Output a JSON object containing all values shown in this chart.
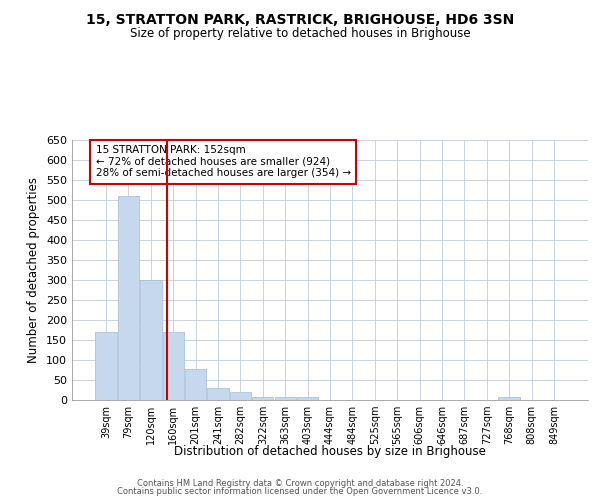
{
  "title1": "15, STRATTON PARK, RASTRICK, BRIGHOUSE, HD6 3SN",
  "title2": "Size of property relative to detached houses in Brighouse",
  "xlabel": "Distribution of detached houses by size in Brighouse",
  "ylabel": "Number of detached properties",
  "categories": [
    "39sqm",
    "79sqm",
    "120sqm",
    "160sqm",
    "201sqm",
    "241sqm",
    "282sqm",
    "322sqm",
    "363sqm",
    "403sqm",
    "444sqm",
    "484sqm",
    "525sqm",
    "565sqm",
    "606sqm",
    "646sqm",
    "687sqm",
    "727sqm",
    "768sqm",
    "808sqm",
    "849sqm"
  ],
  "values": [
    169,
    510,
    300,
    169,
    78,
    31,
    20,
    8,
    8,
    8,
    0,
    0,
    0,
    0,
    0,
    0,
    0,
    0,
    8,
    0,
    0
  ],
  "bar_color": "#c5d8ed",
  "bar_edge_color": "#a0bcd8",
  "vline_x": 2.72,
  "vline_color": "#cc0000",
  "ylim": [
    0,
    650
  ],
  "yticks": [
    0,
    50,
    100,
    150,
    200,
    250,
    300,
    350,
    400,
    450,
    500,
    550,
    600,
    650
  ],
  "annotation_text": "15 STRATTON PARK: 152sqm\n← 72% of detached houses are smaller (924)\n28% of semi-detached houses are larger (354) →",
  "annotation_box_color": "#ffffff",
  "annotation_box_edge": "#cc0000",
  "background_color": "#ffffff",
  "grid_color": "#c8d4e0",
  "footer1": "Contains HM Land Registry data © Crown copyright and database right 2024.",
  "footer2": "Contains public sector information licensed under the Open Government Licence v3.0."
}
